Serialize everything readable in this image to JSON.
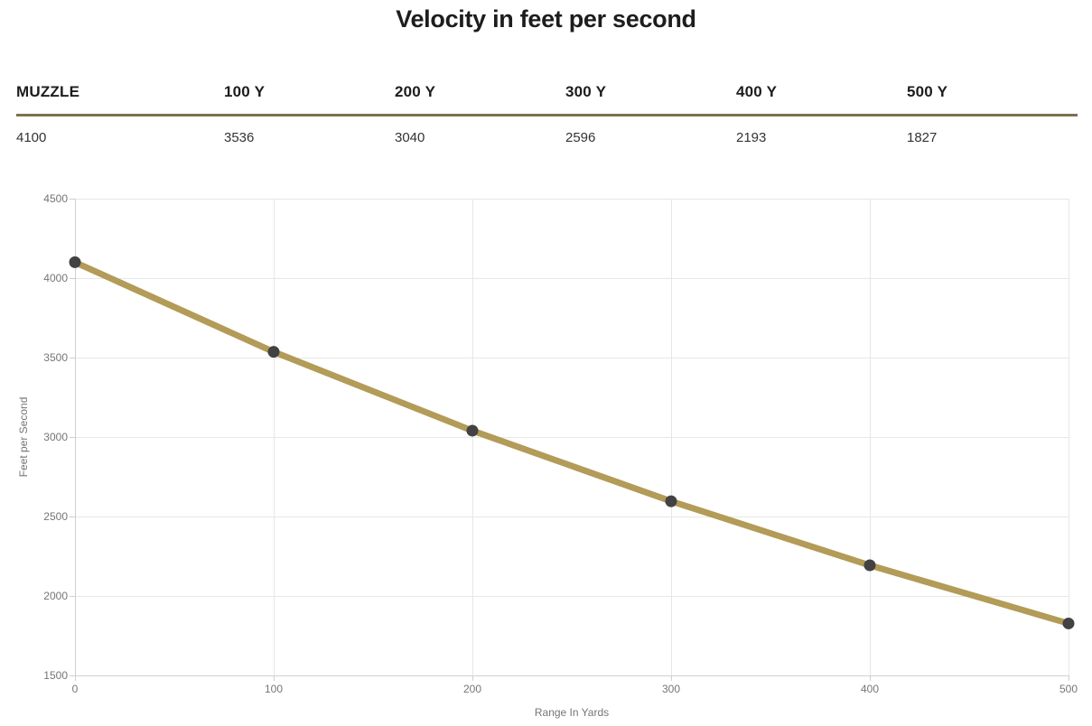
{
  "page_title": "Velocity in feet per second",
  "table": {
    "columns": [
      "MUZZLE",
      "100 Y",
      "200 Y",
      "300 Y",
      "400 Y",
      "500 Y"
    ],
    "values": [
      "4100",
      "3536",
      "3040",
      "2596",
      "2193",
      "1827"
    ]
  },
  "chart_data": {
    "type": "line",
    "title": "Velocity in feet per second",
    "x": [
      0,
      100,
      200,
      300,
      400,
      500
    ],
    "series": [
      {
        "name": "Velocity",
        "values": [
          4100,
          3536,
          3040,
          2596,
          2193,
          1827
        ]
      }
    ],
    "xlabel": "Range In Yards",
    "ylabel": "Feet per Second",
    "xlim": [
      0,
      500
    ],
    "ylim": [
      1500,
      4500
    ],
    "x_ticks": [
      0,
      100,
      200,
      300,
      400,
      500
    ],
    "y_ticks": [
      1500,
      2000,
      2500,
      3000,
      3500,
      4000,
      4500
    ],
    "grid": true,
    "legend": "none",
    "line_color": "#b39b58",
    "point_color": "#424242"
  },
  "colors": {
    "heading_text": "#1d1d1d",
    "value_text": "#333333",
    "table_rule": "#7d7150",
    "gridline": "#e7e7e7",
    "axis_line": "#cfcfcf",
    "axis_label": "#757575",
    "background": "#ffffff"
  }
}
